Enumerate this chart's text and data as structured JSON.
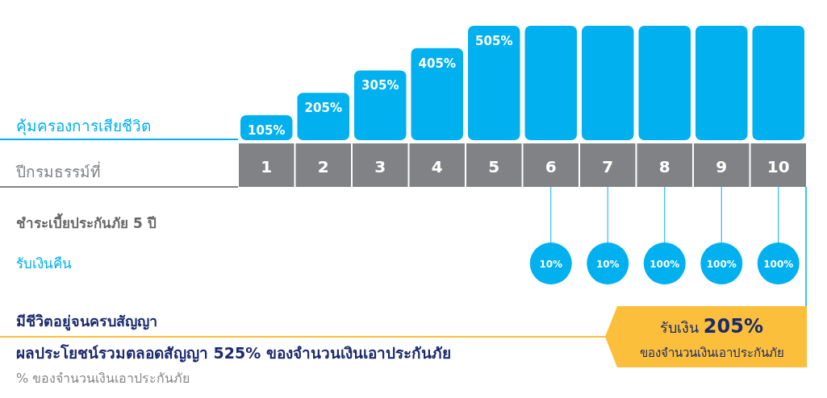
{
  "chart_data": {
    "type": "bar",
    "categories": [
      "1",
      "2",
      "3",
      "4",
      "5",
      "6",
      "7",
      "8",
      "9",
      "10"
    ],
    "series": [
      {
        "name": "คุ้มครองการเสียชีวิต",
        "color": "#00b0ef",
        "values": [
          105,
          205,
          305,
          405,
          505,
          505,
          505,
          505,
          505,
          505
        ],
        "value_labels": [
          "105%",
          "205%",
          "305%",
          "405%",
          "505%",
          null,
          null,
          null,
          null,
          null
        ]
      }
    ],
    "annotations": [
      "ปีกรมธรรม์ที่",
      "ชำระเบี้ยประกันภัย 5 ปี",
      "รับเงินคืน",
      "10%",
      "10%",
      "100%",
      "100%",
      "100%",
      "มีชีวิตอยู่จนครบสัญญา",
      "รับเงิน 205% ของจำนวนเงินเอาประกันภัย",
      "ผลประโยชน์รวมตลอดสัญญา 525% ของจำนวนเงินเอาประกันภัย",
      "% ของจำนวนเงินเอาประกันภัย"
    ]
  }
}
